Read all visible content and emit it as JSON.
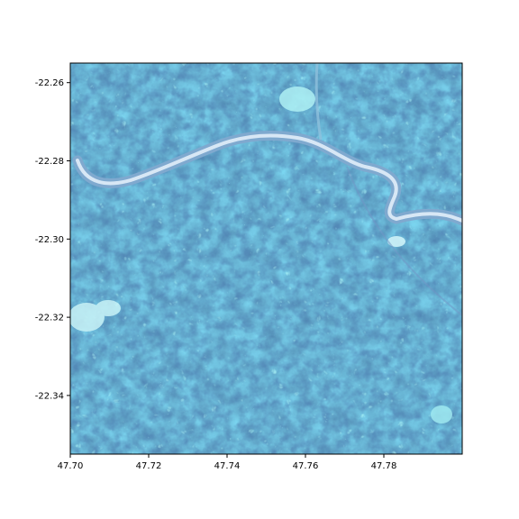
{
  "map": {
    "type": "georeferenced raster (satellite imagery, false-color blue/cyan)",
    "x_ticks": [
      "47.70",
      "47.72",
      "47.74",
      "47.76",
      "47.78"
    ],
    "y_ticks": [
      "-22.26",
      "-22.28",
      "-22.30",
      "-22.32",
      "-22.34"
    ],
    "x_tick_values": [
      47.7,
      47.72,
      47.74,
      47.76,
      47.78
    ],
    "y_tick_values": [
      -22.26,
      -22.28,
      -22.3,
      -22.32,
      -22.34
    ],
    "xlim": [
      47.7,
      47.8
    ],
    "ylim": [
      -22.355,
      -22.255
    ],
    "features": [
      "river",
      "forested hills",
      "bright clearings"
    ],
    "colors": {
      "base": "#2f7fb0",
      "dark": "#1e4f8a",
      "river": "#8ab4d6",
      "river_highlight": "#e8f3fb",
      "clearing": "#7ff0f0",
      "violet": "#5c66b8"
    }
  }
}
